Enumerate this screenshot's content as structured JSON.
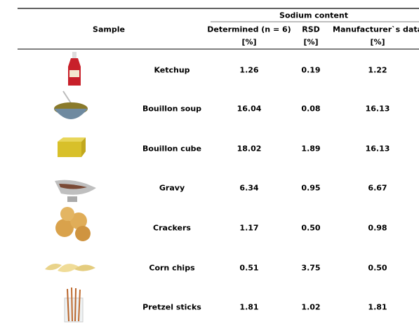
{
  "table": {
    "header": {
      "group": "Sodium content",
      "sample": "Sample",
      "columns": [
        {
          "name": "Determined (n = 6)",
          "unit": "[%]"
        },
        {
          "name": "RSD",
          "unit": "[%]"
        },
        {
          "name": "Manufacturer`s data",
          "unit": "[%]"
        }
      ]
    },
    "rows": [
      [
        "Ketchup",
        "1.26",
        "0.19",
        "1.22"
      ],
      [
        "Bouillon soup",
        "16.04",
        "0.08",
        "16.13"
      ],
      [
        "Bouillon cube",
        "18.02",
        "1.89",
        "16.13"
      ],
      [
        "Gravy",
        "6.34",
        "0.95",
        "6.67"
      ],
      [
        "Crackers",
        "1.17",
        "0.50",
        "0.98"
      ],
      [
        "Corn chips",
        "0.51",
        "3.75",
        "0.50"
      ],
      [
        "Pretzel sticks",
        "1.81",
        "1.02",
        "1.81"
      ]
    ]
  }
}
